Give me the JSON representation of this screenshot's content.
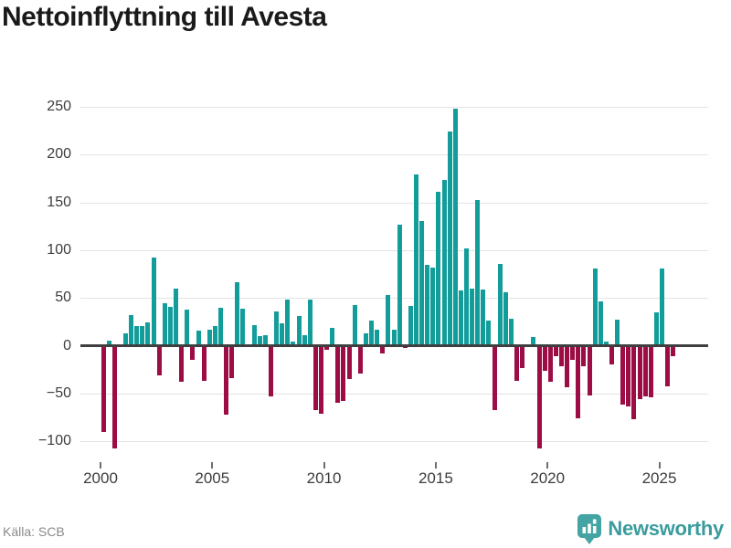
{
  "title": "Nettoinflyttning till Avesta",
  "source": "Källa: SCB",
  "branding": {
    "name": "Newsworthy"
  },
  "colors": {
    "positive_bar": "#129d9b",
    "negative_bar": "#9c0d45",
    "grid": "#e3e3e3",
    "zero_line": "#3f3f3f",
    "title_text": "#1a1a1a",
    "axis_text": "#3c3c3c",
    "source_text": "#8a8a8a",
    "brand_teal": "#3b9c9d"
  },
  "chart_data": {
    "type": "bar",
    "title": "Nettoinflyttning till Avesta",
    "xlabel": "",
    "ylabel": "",
    "frequency": "quarterly",
    "period_start": "2000 Q1",
    "period_end": "2025 Q3",
    "values": [
      -90,
      5,
      -107,
      0,
      13,
      32,
      21,
      21,
      24,
      92,
      -31,
      44,
      41,
      60,
      -38,
      38,
      -15,
      16,
      -37,
      17,
      21,
      40,
      -72,
      -34,
      66,
      39,
      0,
      22,
      10,
      11,
      -53,
      36,
      23,
      48,
      4,
      31,
      11,
      48,
      -67,
      -71,
      -4,
      19,
      -60,
      -58,
      -35,
      43,
      -29,
      13,
      26,
      17,
      -8,
      53,
      17,
      127,
      -2,
      42,
      179,
      130,
      85,
      82,
      161,
      173,
      224,
      248,
      58,
      102,
      60,
      152,
      59,
      26,
      -67,
      86,
      56,
      28,
      -37,
      -23,
      0,
      9,
      -107,
      -26,
      -38,
      -11,
      -21,
      -43,
      -15,
      -76,
      -21,
      -52,
      81,
      46,
      4,
      -20,
      27,
      -62,
      -63,
      -77,
      -56,
      -53,
      -54,
      35,
      81,
      -42,
      -11
    ],
    "x_tick_years": [
      2000,
      2005,
      2010,
      2015,
      2020,
      2025
    ],
    "y_ticks": [
      -100,
      -50,
      0,
      50,
      100,
      150,
      200,
      250
    ],
    "ylim": [
      -120,
      260
    ],
    "grid": true,
    "legend": false
  }
}
